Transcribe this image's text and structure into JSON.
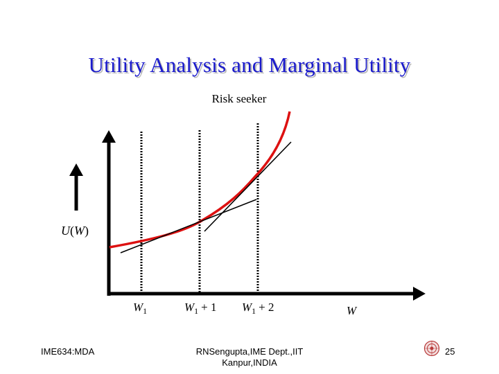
{
  "slide": {
    "title": "Utility Analysis and Marginal Utility",
    "subtitle": "Risk seeker"
  },
  "diagram": {
    "y_axis_label_func": "U",
    "y_axis_label_arg": "W",
    "x_axis_label": "W",
    "x_ticks": [
      {
        "base": "W",
        "sub": "1",
        "suffix": ""
      },
      {
        "base": "W",
        "sub": "1",
        "suffix": "+ 1"
      },
      {
        "base": "W",
        "sub": "1",
        "suffix": "+ 2"
      }
    ],
    "curve_color": "#dd1111",
    "curve_type": "convex utility curve"
  },
  "footer": {
    "left": "IME634:MDA",
    "center_line1": "RNSengupta,IME Dept.,IIT",
    "center_line2": "Kanpur,INDIA",
    "page_number": "25"
  }
}
